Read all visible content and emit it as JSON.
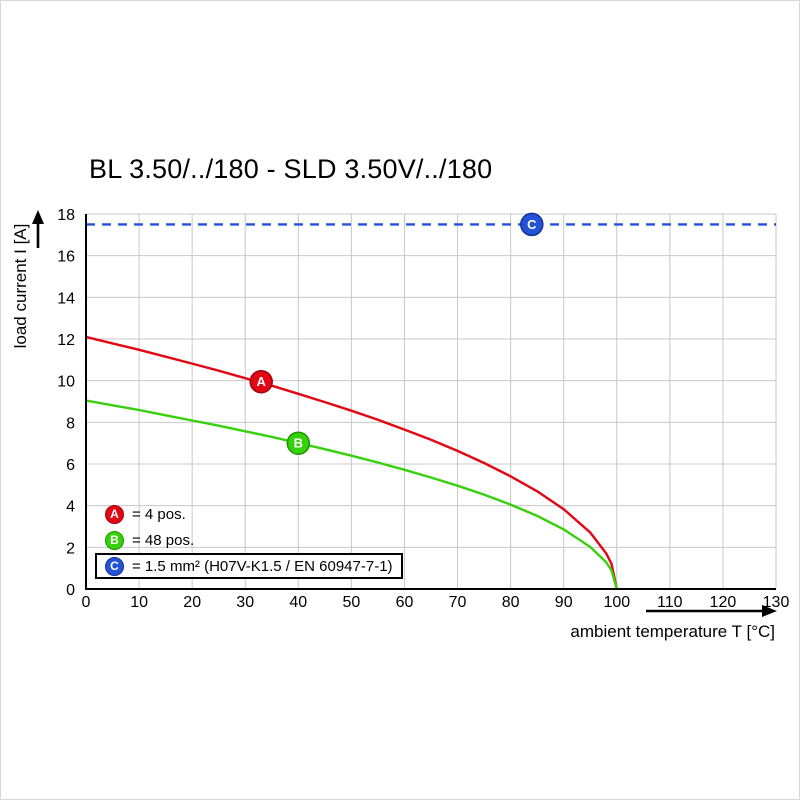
{
  "title": "BL 3.50/../180 - SLD 3.50V/../180",
  "chart_data": {
    "type": "line",
    "title": "BL 3.50/../180 - SLD 3.50V/../180",
    "xlabel": "ambient temperature T [°C]",
    "ylabel": "load current I [A]",
    "xlim": [
      0,
      130
    ],
    "ylim": [
      0,
      18
    ],
    "xticks": [
      0,
      10,
      20,
      30,
      40,
      50,
      60,
      70,
      80,
      90,
      100,
      110,
      120,
      130
    ],
    "yticks": [
      0,
      2,
      4,
      6,
      8,
      10,
      12,
      14,
      16,
      18
    ],
    "grid": true,
    "grid_color": "#c8c8c8",
    "axis_color": "#000000",
    "legend_position": "bottom-left-inside",
    "series": [
      {
        "name": "A",
        "legend": "= 4 pos.",
        "color": "#e30613",
        "edge": "#a50310",
        "dash": false,
        "points": [
          [
            0,
            12.1
          ],
          [
            5,
            11.79
          ],
          [
            10,
            11.48
          ],
          [
            15,
            11.15
          ],
          [
            20,
            10.82
          ],
          [
            25,
            10.48
          ],
          [
            30,
            10.12
          ],
          [
            35,
            9.76
          ],
          [
            40,
            9.37
          ],
          [
            45,
            8.97
          ],
          [
            50,
            8.56
          ],
          [
            55,
            8.12
          ],
          [
            60,
            7.65
          ],
          [
            65,
            7.16
          ],
          [
            70,
            6.63
          ],
          [
            75,
            6.05
          ],
          [
            80,
            5.41
          ],
          [
            85,
            4.69
          ],
          [
            90,
            3.83
          ],
          [
            95,
            2.71
          ],
          [
            98,
            1.71
          ],
          [
            99,
            1.21
          ],
          [
            100,
            0
          ]
        ]
      },
      {
        "name": "B",
        "legend": "= 48 pos.",
        "color": "#35d10a",
        "edge": "#1f9400",
        "dash": false,
        "points": [
          [
            0,
            9.05
          ],
          [
            5,
            8.82
          ],
          [
            10,
            8.59
          ],
          [
            15,
            8.34
          ],
          [
            20,
            8.09
          ],
          [
            25,
            7.84
          ],
          [
            30,
            7.57
          ],
          [
            35,
            7.3
          ],
          [
            40,
            7.01
          ],
          [
            45,
            6.71
          ],
          [
            50,
            6.4
          ],
          [
            55,
            6.07
          ],
          [
            60,
            5.72
          ],
          [
            65,
            5.35
          ],
          [
            70,
            4.96
          ],
          [
            75,
            4.53
          ],
          [
            80,
            4.05
          ],
          [
            85,
            3.51
          ],
          [
            90,
            2.86
          ],
          [
            95,
            2.02
          ],
          [
            98,
            1.28
          ],
          [
            99,
            0.9
          ],
          [
            100,
            0
          ]
        ]
      },
      {
        "name": "C",
        "legend": "= 1.5 mm² (H07V-K1.5 / EN 60947-7-1)",
        "color": "#2453d6",
        "edge": "#12309b",
        "dash": true,
        "points": [
          [
            0,
            17.5
          ],
          [
            130,
            17.5
          ]
        ]
      }
    ],
    "markers": [
      {
        "series": "A",
        "x": 33,
        "y": 9.95
      },
      {
        "series": "B",
        "x": 40,
        "y": 7.0
      },
      {
        "series": "C",
        "x": 84,
        "y": 17.5
      }
    ]
  }
}
